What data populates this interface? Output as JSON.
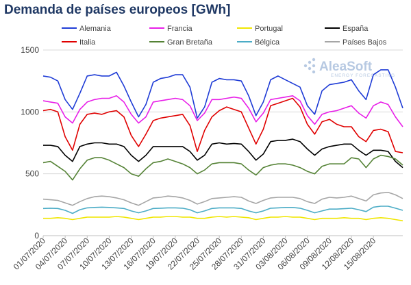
{
  "title": "Demanda de países europeos [GWh]",
  "watermark": {
    "brand": "AleaSoft",
    "tagline": "ENERGY FORECASTING"
  },
  "chart_data": {
    "type": "line",
    "title": "Demanda de países europeos [GWh]",
    "xlabel": "",
    "ylabel": "",
    "ylim": [
      0,
      1500
    ],
    "yticks": [
      0,
      500,
      1000,
      1500
    ],
    "grid": true,
    "legend_position": "top",
    "x_start": "01/07/2020",
    "x_end": "19/08/2020",
    "x_tick_labels": [
      "01/07/2020",
      "04/07/2020",
      "07/07/2020",
      "10/07/2020",
      "13/07/2020",
      "16/07/2020",
      "19/07/2020",
      "22/07/2020",
      "25/07/2020",
      "28/07/2020",
      "31/07/2020",
      "03/08/2020",
      "06/08/2020",
      "09/08/2020",
      "12/08/2020",
      "15/08/2020"
    ],
    "series": [
      {
        "name": "Alemania",
        "color": "#1f3cd6",
        "values": [
          1290,
          1280,
          1250,
          1100,
          1020,
          1150,
          1290,
          1300,
          1290,
          1290,
          1320,
          1210,
          1080,
          960,
          1060,
          1240,
          1270,
          1280,
          1300,
          1300,
          1200,
          950,
          1040,
          1240,
          1270,
          1260,
          1260,
          1250,
          1130,
          970,
          1080,
          1260,
          1290,
          1260,
          1230,
          1200,
          1050,
          980,
          1170,
          1220,
          1230,
          1240,
          1260,
          1170,
          1100,
          1300,
          1340,
          1340,
          1200,
          1030
        ]
      },
      {
        "name": "Francia",
        "color": "#e81ee8",
        "values": [
          1090,
          1080,
          1070,
          960,
          910,
          1020,
          1080,
          1100,
          1110,
          1110,
          1130,
          1080,
          980,
          910,
          960,
          1080,
          1090,
          1100,
          1110,
          1100,
          1050,
          930,
          990,
          1100,
          1100,
          1110,
          1120,
          1110,
          1030,
          920,
          990,
          1100,
          1110,
          1120,
          1130,
          1090,
          970,
          900,
          980,
          1000,
          1010,
          1030,
          1050,
          990,
          950,
          1050,
          1080,
          1060,
          960,
          880
        ]
      },
      {
        "name": "Portugal",
        "color": "#f0e600",
        "values": [
          140,
          140,
          145,
          140,
          130,
          140,
          150,
          150,
          150,
          150,
          155,
          150,
          140,
          130,
          140,
          150,
          150,
          155,
          155,
          150,
          150,
          140,
          140,
          150,
          155,
          150,
          155,
          150,
          145,
          130,
          140,
          150,
          150,
          155,
          150,
          150,
          140,
          130,
          140,
          140,
          140,
          145,
          140,
          140,
          130,
          140,
          145,
          140,
          130,
          120
        ]
      },
      {
        "name": "España",
        "color": "#000000",
        "values": [
          730,
          730,
          720,
          650,
          600,
          720,
          740,
          750,
          750,
          740,
          740,
          720,
          650,
          600,
          650,
          720,
          720,
          720,
          720,
          720,
          680,
          610,
          650,
          740,
          750,
          740,
          745,
          740,
          680,
          610,
          660,
          760,
          770,
          770,
          780,
          760,
          700,
          650,
          700,
          720,
          730,
          740,
          740,
          690,
          650,
          690,
          690,
          680,
          600,
          550
        ]
      },
      {
        "name": "Italia",
        "color": "#e00000",
        "values": [
          1010,
          1020,
          1000,
          800,
          690,
          900,
          980,
          990,
          980,
          1000,
          1010,
          960,
          810,
          720,
          820,
          930,
          950,
          960,
          970,
          980,
          890,
          680,
          850,
          960,
          1010,
          1040,
          1020,
          1000,
          870,
          740,
          860,
          1050,
          1070,
          1090,
          1110,
          1040,
          900,
          820,
          920,
          940,
          900,
          880,
          880,
          800,
          760,
          850,
          860,
          840,
          680,
          670
        ]
      },
      {
        "name": "Gran Bretaña",
        "color": "#548235",
        "values": [
          590,
          600,
          560,
          520,
          450,
          540,
          610,
          630,
          630,
          610,
          580,
          550,
          500,
          480,
          540,
          590,
          600,
          620,
          600,
          580,
          550,
          500,
          530,
          580,
          590,
          590,
          590,
          580,
          530,
          490,
          550,
          570,
          580,
          580,
          570,
          550,
          520,
          500,
          560,
          580,
          580,
          580,
          630,
          620,
          550,
          620,
          650,
          640,
          620,
          570
        ]
      },
      {
        "name": "Bélgica",
        "color": "#4bacc6",
        "values": [
          220,
          222,
          220,
          205,
          180,
          210,
          225,
          228,
          230,
          228,
          225,
          220,
          200,
          185,
          200,
          220,
          222,
          225,
          225,
          222,
          210,
          185,
          200,
          220,
          225,
          225,
          225,
          220,
          200,
          185,
          200,
          222,
          225,
          228,
          228,
          222,
          205,
          185,
          200,
          215,
          215,
          218,
          222,
          210,
          195,
          230,
          238,
          238,
          222,
          205
        ]
      },
      {
        "name": "Países Bajos",
        "color": "#a6a6a6",
        "values": [
          295,
          290,
          285,
          265,
          245,
          275,
          300,
          315,
          320,
          315,
          305,
          290,
          265,
          245,
          275,
          305,
          310,
          320,
          315,
          305,
          285,
          255,
          275,
          300,
          305,
          310,
          315,
          310,
          280,
          260,
          285,
          305,
          310,
          310,
          310,
          300,
          275,
          260,
          295,
          310,
          305,
          310,
          320,
          300,
          280,
          330,
          345,
          350,
          330,
          300
        ]
      }
    ]
  }
}
